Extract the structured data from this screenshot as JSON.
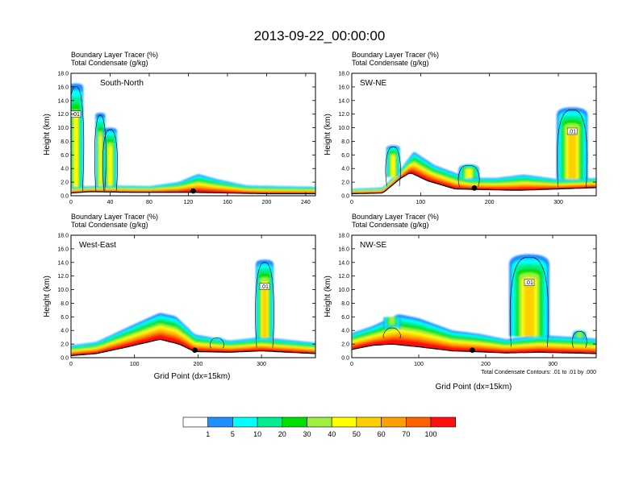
{
  "title": "2013-09-22_00:00:00",
  "panel_header": {
    "line1": "Boundary Layer Tracer   (%)",
    "line2": "Total Condensate   (g/kg)"
  },
  "y_axis_label": "Height (km)",
  "x_axis_label": "Grid Point (dx=15km)",
  "contour_note": "Total Condensate Contours: .01 to .01 by .000",
  "colorbar": {
    "colors": [
      "#ffffff",
      "#1e90ff",
      "#00ffff",
      "#00ee90",
      "#00e000",
      "#a0ee40",
      "#ffff00",
      "#ffd000",
      "#ffa000",
      "#ff6000",
      "#ff1010"
    ],
    "labels": [
      "1",
      "5",
      "10",
      "20",
      "30",
      "40",
      "50",
      "60",
      "70",
      "100"
    ]
  },
  "chart_data": [
    {
      "type": "heatmap",
      "label": "South-North",
      "ylim": [
        0,
        18
      ],
      "yticks": [
        "0.0",
        "2.0",
        "4.0",
        "6.0",
        "8.0",
        "10.0",
        "12.0",
        "14.0",
        "16.0",
        "18.0"
      ],
      "xlim": [
        0,
        250
      ],
      "xticks": [
        0,
        40,
        80,
        120,
        160,
        200,
        240
      ],
      "terrain": [
        [
          0,
          0.4
        ],
        [
          20,
          0.6
        ],
        [
          60,
          0.5
        ],
        [
          125,
          0.5
        ],
        [
          200,
          0.3
        ],
        [
          250,
          0.3
        ]
      ],
      "pbl": [
        [
          0,
          1.3
        ],
        [
          40,
          1.5
        ],
        [
          80,
          1.4
        ],
        [
          110,
          2.0
        ],
        [
          130,
          3.2
        ],
        [
          150,
          2.4
        ],
        [
          180,
          1.5
        ],
        [
          250,
          1.3
        ]
      ],
      "towers": [
        [
          5,
          15,
          16.5,
          0.8
        ],
        [
          30,
          10,
          12.2,
          0.8
        ],
        [
          40,
          14,
          10.0,
          0.8
        ]
      ],
      "marker_x": 125,
      "contour_label": ".01"
    },
    {
      "type": "heatmap",
      "label": "SW-NE",
      "ylim": [
        0,
        18
      ],
      "yticks": [
        "0.0",
        "2.0",
        "4.0",
        "6.0",
        "8.0",
        "10.0",
        "12.0",
        "14.0",
        "16.0",
        "18.0"
      ],
      "xlim": [
        0,
        355
      ],
      "xticks": [
        0,
        100,
        200,
        300
      ],
      "terrain": [
        [
          0,
          0.3
        ],
        [
          45,
          0.4
        ],
        [
          70,
          2.5
        ],
        [
          85,
          3.4
        ],
        [
          110,
          2.2
        ],
        [
          150,
          1.0
        ],
        [
          240,
          0.8
        ],
        [
          300,
          1.0
        ],
        [
          355,
          1.2
        ]
      ],
      "pbl": [
        [
          0,
          1.0
        ],
        [
          45,
          1.2
        ],
        [
          70,
          3.8
        ],
        [
          90,
          6.5
        ],
        [
          120,
          4.5
        ],
        [
          170,
          2.6
        ],
        [
          210,
          2.6
        ],
        [
          250,
          3.1
        ],
        [
          300,
          2.4
        ],
        [
          355,
          2.6
        ]
      ],
      "towers": [
        [
          320,
          45,
          13.0,
          0.85
        ],
        [
          170,
          30,
          4.6,
          0.7
        ],
        [
          60,
          20,
          7.4,
          0.7
        ]
      ],
      "marker_x": 178,
      "contour_label": ".01"
    },
    {
      "type": "heatmap",
      "label": "West-East",
      "ylim": [
        0,
        18
      ],
      "yticks": [
        "0.0",
        "2.0",
        "4.0",
        "6.0",
        "8.0",
        "10.0",
        "12.0",
        "14.0",
        "16.0",
        "18.0"
      ],
      "xlim": [
        0,
        385
      ],
      "xticks": [
        0,
        100,
        200,
        300
      ],
      "terrain": [
        [
          0,
          0.3
        ],
        [
          40,
          0.6
        ],
        [
          90,
          1.6
        ],
        [
          140,
          2.7
        ],
        [
          170,
          2.0
        ],
        [
          195,
          0.9
        ],
        [
          250,
          0.8
        ],
        [
          300,
          1.0
        ],
        [
          385,
          0.6
        ]
      ],
      "pbl": [
        [
          0,
          1.8
        ],
        [
          40,
          2.3
        ],
        [
          90,
          4.5
        ],
        [
          140,
          6.6
        ],
        [
          165,
          6.1
        ],
        [
          195,
          3.4
        ],
        [
          250,
          2.5
        ],
        [
          300,
          3.0
        ],
        [
          385,
          2.2
        ]
      ],
      "towers": [
        [
          305,
          28,
          14.4,
          0.85
        ],
        [
          230,
          20,
          3.0,
          0.6
        ]
      ],
      "marker_x": 195,
      "contour_label": ".01"
    },
    {
      "type": "heatmap",
      "label": "NW-SE",
      "ylim": [
        0,
        18
      ],
      "yticks": [
        "0.0",
        "2.0",
        "4.0",
        "6.0",
        "8.0",
        "10.0",
        "12.0",
        "14.0",
        "16.0",
        "18.0"
      ],
      "xlim": [
        0,
        365
      ],
      "xticks": [
        0,
        100,
        200,
        300
      ],
      "terrain": [
        [
          0,
          1.2
        ],
        [
          30,
          1.8
        ],
        [
          60,
          2.0
        ],
        [
          100,
          1.6
        ],
        [
          150,
          1.0
        ],
        [
          180,
          0.9
        ],
        [
          230,
          0.7
        ],
        [
          280,
          0.8
        ],
        [
          365,
          0.6
        ]
      ],
      "pbl": [
        [
          0,
          3.6
        ],
        [
          30,
          4.6
        ],
        [
          70,
          6.4
        ],
        [
          100,
          5.8
        ],
        [
          150,
          4.0
        ],
        [
          190,
          3.5
        ],
        [
          230,
          2.7
        ],
        [
          280,
          3.3
        ],
        [
          365,
          2.8
        ]
      ],
      "towers": [
        [
          265,
          60,
          15.2,
          0.9
        ],
        [
          60,
          25,
          4.5,
          0.6
        ],
        [
          340,
          20,
          4.0,
          0.6
        ]
      ],
      "marker_x": 180,
      "contour_label": ".01"
    }
  ]
}
